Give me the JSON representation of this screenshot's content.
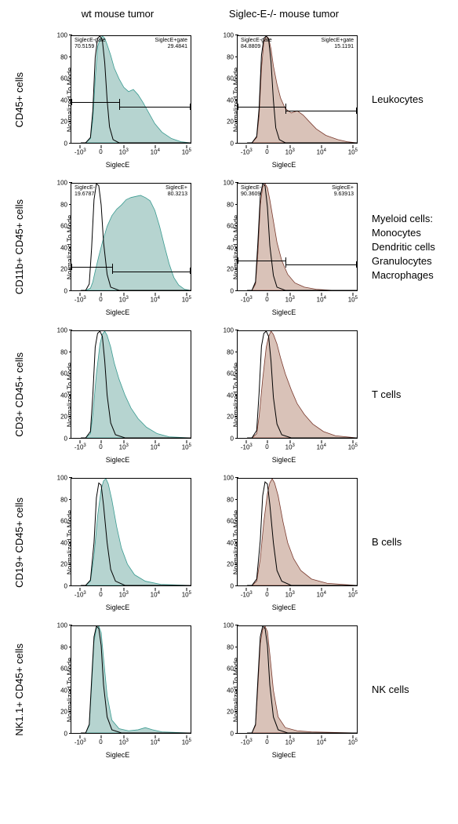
{
  "columns": [
    "wt mouse tumor",
    "Siglec-E-/- mouse tumor"
  ],
  "y_axis_label": "Normalized To Mode",
  "x_axis_label": "SiglecE",
  "y_ticks": [
    0,
    20,
    40,
    60,
    80,
    100
  ],
  "x_tick_labels": [
    "-10^3",
    "0",
    "10^3",
    "10^4",
    "10^5"
  ],
  "x_tick_positions": [
    8,
    25,
    44,
    70,
    96
  ],
  "colors": {
    "wt_fill": "#b6d4d0",
    "wt_stroke": "#3a9b91",
    "ko_fill": "#d9c2b8",
    "ko_stroke": "#7a3a2e",
    "control_stroke": "#000000",
    "background": "#ffffff"
  },
  "rows": [
    {
      "row_label": "CD45+ cells",
      "side_label": "Leukocytes",
      "wt": {
        "gates": {
          "neg_label": "SiglecE-gate",
          "neg_val": "70.5159",
          "pos_label": "SiglecE+gate",
          "pos_val": "29.4841",
          "bar_y": 62,
          "split_x": 40
        },
        "control_poly": "8,100 12,100 16,95 18,70 20,20 22,2 24,0 26,4 28,25 30,60 32,85 35,97 40,100 100,100",
        "sample_poly": "8,100 12,100 16,96 18,78 20,40 22,10 24,3 26,0 28,2 30,8 33,18 36,30 40,40 44,48 48,52 52,50 56,55 60,62 65,72 70,82 76,90 84,96 92,99 100,100"
      },
      "ko": {
        "gates": {
          "neg_label": "SiglecE-gate",
          "neg_val": "84.8809",
          "pos_label": "SiglecE+gate",
          "pos_val": "15.1191",
          "bar_y": 66,
          "split_x": 40
        },
        "control_poly": "8,100 12,100 16,94 18,68 20,18 22,2 24,0 26,3 28,24 30,60 32,86 35,97 40,100 100,100",
        "sample_poly": "8,100 12,100 16,95 18,75 20,30 22,5 24,0 26,2 28,12 30,28 33,45 36,58 40,68 45,72 50,70 55,74 60,80 66,87 74,93 84,97 92,99 100,100"
      }
    },
    {
      "row_label": "CD11b+ CD45+ cells",
      "side_label": "Myeloid cells:\nMonocytes\nDendritic cells\nGranulocytes\nMacrophages",
      "wt": {
        "gates": {
          "neg_label": "SiglecE-",
          "neg_val": "19.6787",
          "pos_label": "SiglecE+",
          "pos_val": "80.3213",
          "bar_y": 78,
          "split_x": 34
        },
        "control_poly": "8,100 12,100 15,94 17,60 19,15 21,0 23,2 25,20 27,55 30,85 33,97 40,100 100,100",
        "sample_poly": "8,100 12,100 16,98 18,92 20,82 23,68 26,55 30,40 34,30 38,24 42,20 46,15 50,13 54,12 58,11 62,13 66,16 70,25 74,40 78,58 82,75 86,88 90,95 95,99 100,100"
      },
      "ko": {
        "gates": {
          "neg_label": "SiglecE-",
          "neg_val": "90.3609",
          "pos_label": "SiglecE+",
          "pos_val": "9.63913",
          "bar_y": 72,
          "split_x": 40
        },
        "control_poly": "8,100 12,100 15,92 17,55 19,12 21,0 23,2 25,22 27,58 30,86 33,97 40,100 100,100",
        "sample_poly": "8,100 12,100 15,94 17,65 19,20 21,3 23,0 25,4 27,15 30,35 33,55 37,72 42,85 48,93 56,97 66,99 80,100 100,100"
      }
    },
    {
      "row_label": "CD3+ CD45+ cells",
      "side_label": "T cells",
      "wt": {
        "control_poly": "8,100 12,100 16,94 18,60 20,15 22,2 24,0 26,5 28,28 30,60 33,86 37,97 45,100 100,100",
        "sample_poly": "8,100 12,100 16,96 18,78 21,40 24,12 26,3 28,0 30,4 33,15 36,30 40,45 45,60 50,72 56,82 63,90 72,96 82,99 100,100"
      },
      "ko": {
        "control_poly": "8,100 12,100 16,93 18,58 20,14 22,2 24,0 26,5 28,28 30,62 33,87 37,97 45,100 100,100",
        "sample_poly": "8,100 12,100 16,96 18,80 21,45 24,15 26,5 28,0 30,3 33,12 36,25 40,40 45,55 50,68 56,78 63,87 72,94 82,98 100,100"
      }
    },
    {
      "row_label": "CD19+ CD45+ cells",
      "side_label": "B cells",
      "wt": {
        "control_poly": "8,100 12,100 16,95 19,60 21,18 23,4 25,6 27,25 30,60 33,85 37,96 45,100 100,100",
        "sample_poly": "8,100 12,100 16,96 19,72 22,35 25,10 27,2 29,0 31,5 34,20 38,45 42,65 47,80 53,90 62,96 75,99 100,100"
      },
      "ko": {
        "control_poly": "8,100 12,100 16,94 19,58 21,16 23,3 25,5 27,24 30,60 33,86 37,96 45,100 100,100",
        "sample_poly": "8,100 12,100 16,96 19,75 22,40 25,14 27,4 29,0 31,4 34,16 38,40 42,60 47,75 53,86 62,94 75,98 100,100"
      }
    },
    {
      "row_label": "NK1.1+ CD45+ cells",
      "side_label": "NK cells",
      "wt": {
        "control_poly": "8,100 12,100 15,92 17,50 19,10 21,0 23,2 25,18 27,55 30,85 34,97 42,100 100,100",
        "sample_poly": "8,100 12,100 15,93 17,55 19,14 21,2 23,0 25,6 27,30 30,65 34,88 40,96 48,98 56,97 62,95 68,97 76,99 100,100"
      },
      "ko": {
        "control_poly": "8,100 12,100 15,92 17,50 19,10 21,0 23,2 25,18 27,55 30,85 34,97 42,100 100,100",
        "sample_poly": "8,100 12,100 15,93 17,56 19,16 21,3 23,0 25,5 27,26 30,60 34,85 40,95 50,98 62,99 100,100"
      }
    }
  ]
}
